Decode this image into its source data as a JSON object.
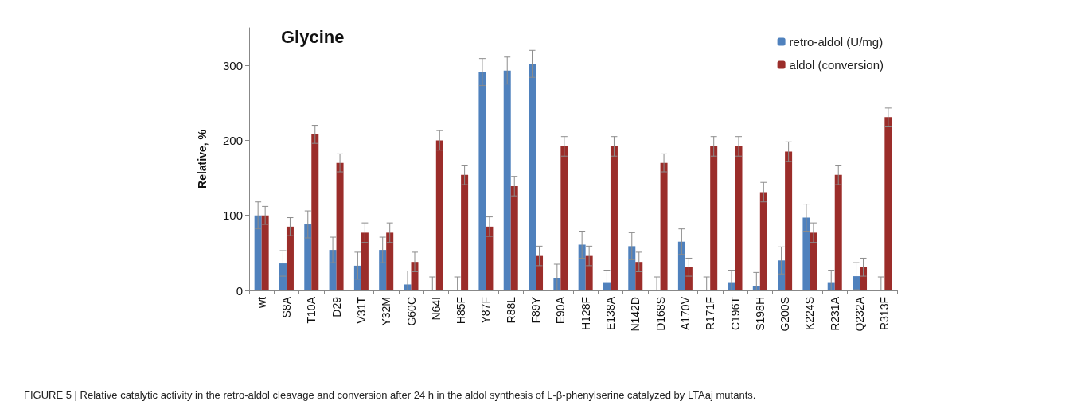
{
  "chart_data": {
    "type": "bar",
    "title": "Glycine",
    "ylabel": "Relative, %",
    "annotations": [
      "FIGURE 5 | Relative catalytic activity in the retro-aldol cleavage and conversion after 24 h in the aldol synthesis of L-β-phenylserine catalyzed by LTAaj mutants."
    ],
    "categories": [
      "wt",
      "S8A",
      "T10A",
      "D29",
      "V31T",
      "Y32M",
      "G60C",
      "N64I",
      "H85F",
      "Y87F",
      "R88L",
      "F89Y",
      "E90A",
      "H128F",
      "E138A",
      "N142D",
      "D168S",
      "A170V",
      "R171F",
      "C196T",
      "S198H",
      "G200S",
      "K224S",
      "R231A",
      "Q232A",
      "R313F"
    ],
    "series": [
      {
        "name": "retro-aldol (U/mg)",
        "color": "#4f81bd",
        "values": [
          100,
          36,
          88,
          54,
          33,
          54,
          8,
          0,
          0,
          291,
          293,
          302,
          17,
          61,
          10,
          59,
          0,
          65,
          0,
          10,
          6,
          40,
          97,
          10,
          19,
          0
        ],
        "errors": [
          18,
          17,
          18,
          17,
          18,
          17,
          [
            0,
            26
          ],
          [
            0,
            18
          ],
          [
            0,
            18
          ],
          18,
          18,
          18,
          [
            0,
            35
          ],
          18,
          [
            0,
            27
          ],
          18,
          [
            0,
            18
          ],
          17,
          [
            0,
            18
          ],
          [
            0,
            27
          ],
          [
            0,
            24
          ],
          18,
          18,
          [
            0,
            27
          ],
          [
            1,
            37
          ],
          [
            0,
            18
          ]
        ]
      },
      {
        "name": "aldol (conversion)",
        "color": "#9b2d2a",
        "values": [
          100,
          85,
          208,
          170,
          77,
          77,
          38,
          200,
          154,
          85,
          139,
          46,
          192,
          46,
          192,
          38,
          170,
          31,
          192,
          192,
          131,
          185,
          77,
          154,
          31,
          231
        ],
        "errors": [
          12,
          12,
          12,
          12,
          13,
          13,
          13,
          13,
          13,
          13,
          13,
          13,
          13,
          13,
          13,
          13,
          12,
          12,
          13,
          13,
          13,
          13,
          13,
          13,
          12,
          12
        ]
      }
    ],
    "ylim": [
      0,
      350
    ],
    "yticks": [
      0,
      100,
      200,
      300
    ],
    "grid": false,
    "legend": "top right"
  }
}
